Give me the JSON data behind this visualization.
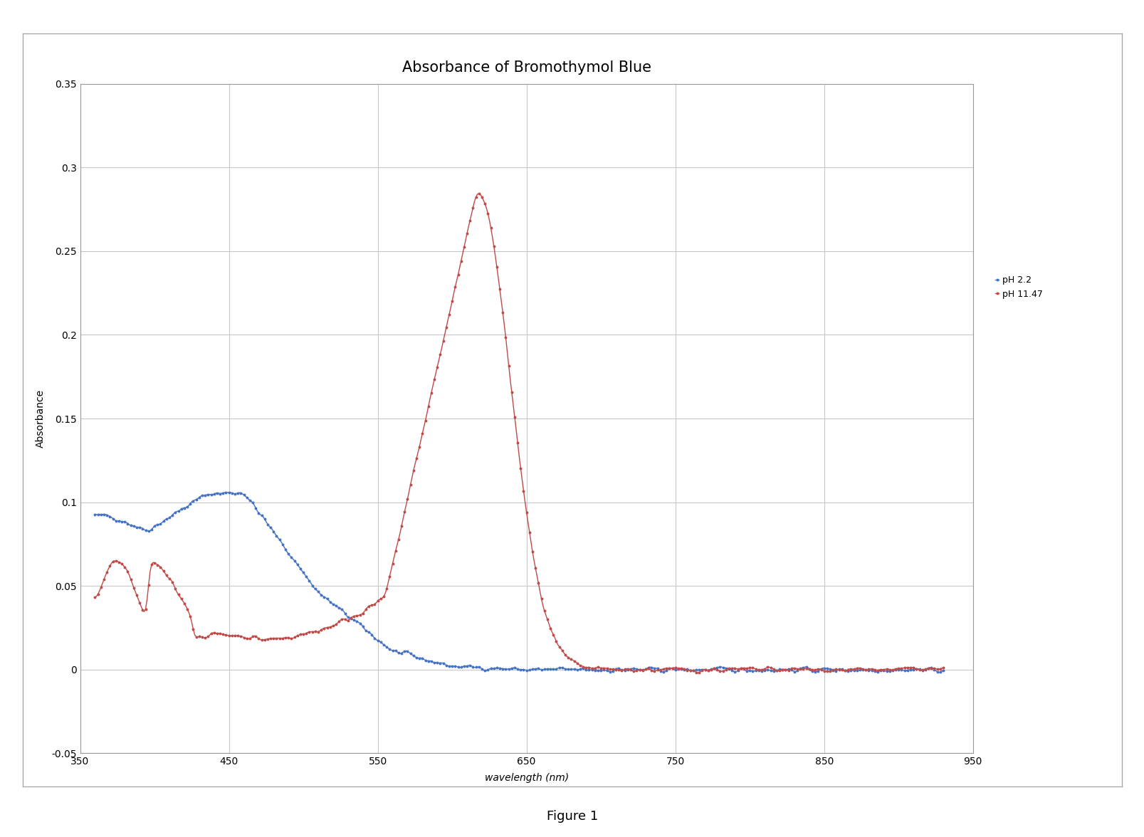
{
  "title": "Absorbance of Bromothymol Blue",
  "xlabel": "wavelength (nm)",
  "ylabel": "Absorbance",
  "figure_caption": "Figure 1",
  "xlim": [
    350,
    950
  ],
  "ylim": [
    -0.05,
    0.35
  ],
  "xticks": [
    350,
    450,
    550,
    650,
    750,
    850,
    950
  ],
  "ytick_vals": [
    -0.05,
    0,
    0.05,
    0.1,
    0.15,
    0.2,
    0.25,
    0.3,
    0.35
  ],
  "ytick_labels": [
    "-0.05",
    "0",
    "0.05",
    "0.1",
    "0.15",
    "0.2",
    "0.25",
    "0.3",
    "0.35"
  ],
  "color_ph22": "#4472C4",
  "color_ph1147": "#BE4B48",
  "legend_labels": [
    "pH 2.2",
    "pH 11.47"
  ],
  "background_color": "#FFFFFF",
  "plot_bg_color": "#FFFFFF",
  "grid_color": "#C8C8C8",
  "title_fontsize": 15,
  "label_fontsize": 10,
  "tick_fontsize": 10,
  "caption_fontsize": 13
}
